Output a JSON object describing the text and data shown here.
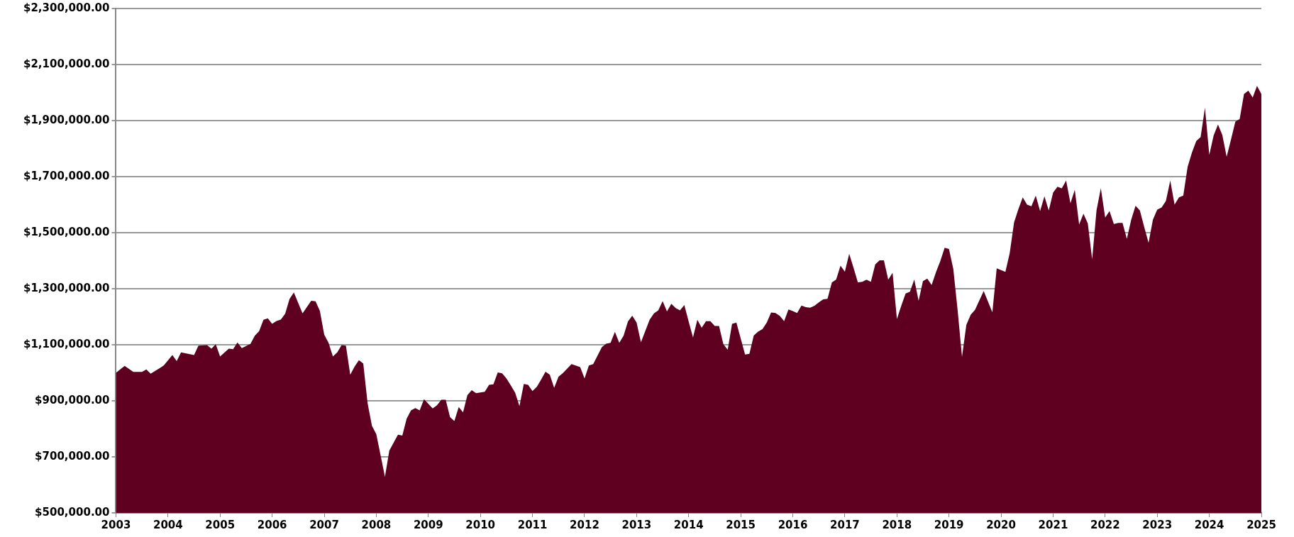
{
  "chart_data": {
    "type": "area",
    "color": "#600020",
    "grid": "y",
    "legend": false,
    "x": [
      "2003-01",
      "2003-03",
      "2003-05",
      "2003-07",
      "2003-08",
      "2003-09",
      "2003-11",
      "2003-12",
      "2004-02",
      "2004-03",
      "2004-04",
      "2004-07",
      "2004-08",
      "2004-10",
      "2004-11",
      "2004-12",
      "2005-01",
      "2005-03",
      "2005-04",
      "2005-05",
      "2005-06",
      "2005-08",
      "2005-09",
      "2005-10",
      "2005-11",
      "2005-12",
      "2006-01",
      "2006-02",
      "2006-03",
      "2006-04",
      "2006-05",
      "2006-06",
      "2006-08",
      "2006-10",
      "2006-11",
      "2006-12",
      "2007-01",
      "2007-02",
      "2007-03",
      "2007-04",
      "2007-05",
      "2007-06",
      "2007-07",
      "2007-08",
      "2007-09",
      "2007-10",
      "2007-11",
      "2007-12",
      "2008-01",
      "2008-03",
      "2008-04",
      "2008-06",
      "2008-07",
      "2008-08",
      "2008-09",
      "2008-10",
      "2008-11",
      "2008-12",
      "2009-02",
      "2009-03",
      "2009-04",
      "2009-05",
      "2009-06",
      "2009-07",
      "2009-08",
      "2009-09",
      "2009-10",
      "2009-11",
      "2009-12",
      "2010-02",
      "2010-03",
      "2010-04",
      "2010-05",
      "2010-06",
      "2010-07",
      "2010-08",
      "2010-09",
      "2010-10",
      "2010-11",
      "2010-12",
      "2011-01",
      "2011-02",
      "2011-03",
      "2011-04",
      "2011-05",
      "2011-06",
      "2011-07",
      "2011-08",
      "2011-10",
      "2011-12",
      "2012-01",
      "2012-02",
      "2012-03",
      "2012-05",
      "2012-06",
      "2012-07",
      "2012-08",
      "2012-09",
      "2012-10",
      "2012-11",
      "2012-12",
      "2013-01",
      "2013-02",
      "2013-04",
      "2013-05",
      "2013-06",
      "2013-07",
      "2013-08",
      "2013-09",
      "2013-10",
      "2013-11",
      "2013-12",
      "2014-01",
      "2014-02",
      "2014-03",
      "2014-04",
      "2014-05",
      "2014-06",
      "2014-07",
      "2014-08",
      "2014-09",
      "2014-10",
      "2014-11",
      "2014-12",
      "2015-02",
      "2015-03",
      "2015-04",
      "2015-05",
      "2015-06",
      "2015-07",
      "2015-08",
      "2015-09",
      "2015-10",
      "2015-11",
      "2015-12",
      "2016-01",
      "2016-02",
      "2016-03",
      "2016-04",
      "2016-05",
      "2016-06",
      "2016-07",
      "2016-08",
      "2016-09",
      "2016-10",
      "2016-11",
      "2016-12",
      "2017-01",
      "2017-02",
      "2017-03",
      "2017-04",
      "2017-05",
      "2017-06",
      "2017-07",
      "2017-08",
      "2017-09",
      "2017-10",
      "2017-11",
      "2017-12",
      "2018-01",
      "2018-02",
      "2018-03",
      "2018-04",
      "2018-05",
      "2018-06",
      "2018-07",
      "2018-08",
      "2018-09",
      "2018-10",
      "2018-11",
      "2018-12",
      "2019-01",
      "2019-02",
      "2019-03",
      "2019-04",
      "2019-05",
      "2019-06",
      "2019-07",
      "2019-09",
      "2019-11",
      "2019-12",
      "2020-02",
      "2020-03",
      "2020-04",
      "2020-05",
      "2020-06",
      "2020-07",
      "2020-08",
      "2020-09",
      "2020-10",
      "2020-11",
      "2020-12",
      "2021-01",
      "2021-02",
      "2021-03",
      "2021-04",
      "2021-05",
      "2021-06",
      "2021-07",
      "2021-08",
      "2021-09",
      "2021-10",
      "2021-11",
      "2021-12",
      "2022-01",
      "2022-02",
      "2022-03",
      "2022-04",
      "2022-05",
      "2022-06",
      "2022-07",
      "2022-08",
      "2022-09",
      "2022-10",
      "2022-11",
      "2022-12",
      "2023-01",
      "2023-02",
      "2023-03",
      "2023-04",
      "2023-05",
      "2023-06",
      "2023-07",
      "2023-08",
      "2023-09",
      "2023-10",
      "2023-11",
      "2023-12",
      "2024-01",
      "2024-02",
      "2024-03",
      "2024-04",
      "2024-05",
      "2024-06",
      "2024-07",
      "2024-08",
      "2024-09",
      "2024-10",
      "2024-11",
      "2024-12",
      "2025-01"
    ],
    "values": [
      1000000,
      1025000,
      1003000,
      1003000,
      1012000,
      997000,
      1016000,
      1026000,
      1063000,
      1042000,
      1073000,
      1063000,
      1097000,
      1099000,
      1086000,
      1102000,
      1058000,
      1086000,
      1084000,
      1108000,
      1088000,
      1103000,
      1132000,
      1149000,
      1189000,
      1194000,
      1175000,
      1185000,
      1190000,
      1211000,
      1263000,
      1287000,
      1212000,
      1257000,
      1255000,
      1221000,
      1136000,
      1107000,
      1058000,
      1073000,
      1099000,
      1097000,
      993000,
      1022000,
      1045000,
      1033000,
      891000,
      811000,
      781000,
      629000,
      722000,
      779000,
      776000,
      836000,
      866000,
      874000,
      866000,
      906000,
      873000,
      884000,
      904000,
      904000,
      842000,
      828000,
      878000,
      859000,
      920000,
      938000,
      927000,
      932000,
      957000,
      959000,
      1001000,
      998000,
      980000,
      955000,
      929000,
      881000,
      960000,
      957000,
      935000,
      950000,
      976000,
      1004000,
      993000,
      946000,
      986000,
      999000,
      1031000,
      1020000,
      980000,
      1026000,
      1031000,
      1092000,
      1104000,
      1107000,
      1146000,
      1107000,
      1132000,
      1183000,
      1204000,
      1179000,
      1109000,
      1189000,
      1212000,
      1223000,
      1256000,
      1219000,
      1246000,
      1231000,
      1223000,
      1242000,
      1183000,
      1126000,
      1189000,
      1161000,
      1184000,
      1184000,
      1167000,
      1167000,
      1102000,
      1082000,
      1175000,
      1179000,
      1065000,
      1068000,
      1133000,
      1147000,
      1156000,
      1179000,
      1215000,
      1213000,
      1203000,
      1184000,
      1226000,
      1220000,
      1213000,
      1240000,
      1234000,
      1232000,
      1239000,
      1251000,
      1262000,
      1264000,
      1322000,
      1333000,
      1382000,
      1361000,
      1425000,
      1375000,
      1323000,
      1325000,
      1332000,
      1325000,
      1387000,
      1401000,
      1401000,
      1332000,
      1357000,
      1192000,
      1239000,
      1283000,
      1289000,
      1333000,
      1257000,
      1327000,
      1336000,
      1313000,
      1359000,
      1399000,
      1446000,
      1442000,
      1370000,
      1222000,
      1057000,
      1171000,
      1207000,
      1225000,
      1292000,
      1216000,
      1373000,
      1360000,
      1427000,
      1537000,
      1584000,
      1626000,
      1600000,
      1594000,
      1632000,
      1577000,
      1630000,
      1579000,
      1643000,
      1664000,
      1658000,
      1686000,
      1605000,
      1653000,
      1529000,
      1568000,
      1533000,
      1405000,
      1579000,
      1659000,
      1554000,
      1577000,
      1531000,
      1535000,
      1535000,
      1478000,
      1546000,
      1596000,
      1579000,
      1520000,
      1464000,
      1546000,
      1582000,
      1590000,
      1613000,
      1686000,
      1600000,
      1626000,
      1632000,
      1735000,
      1786000,
      1827000,
      1841000,
      1946000,
      1778000,
      1847000,
      1886000,
      1849000,
      1771000,
      1832000,
      1896000,
      1906000,
      1995000,
      2007000,
      1982000,
      2024000,
      1995000
    ],
    "xlim": [
      "2003",
      "2025"
    ],
    "xticks": [
      "2003",
      "2004",
      "2005",
      "2006",
      "2007",
      "2008",
      "2009",
      "2010",
      "2011",
      "2012",
      "2013",
      "2014",
      "2015",
      "2016",
      "2017",
      "2018",
      "2019",
      "2020",
      "2021",
      "2022",
      "2023",
      "2024",
      "2025"
    ],
    "ylim": [
      500000,
      2300000
    ],
    "yticks": [
      {
        "value": 500000,
        "label": "$500,000.00"
      },
      {
        "value": 700000,
        "label": "$700,000.00"
      },
      {
        "value": 900000,
        "label": "$900,000.00"
      },
      {
        "value": 1100000,
        "label": "$1,100,000.00"
      },
      {
        "value": 1300000,
        "label": "$1,300,000.00"
      },
      {
        "value": 1500000,
        "label": "$1,500,000.00"
      },
      {
        "value": 1700000,
        "label": "$1,700,000.00"
      },
      {
        "value": 1900000,
        "label": "$1,900,000.00"
      },
      {
        "value": 2100000,
        "label": "$2,100,000.00"
      },
      {
        "value": 2300000,
        "label": "$2,300,000.00"
      }
    ]
  }
}
